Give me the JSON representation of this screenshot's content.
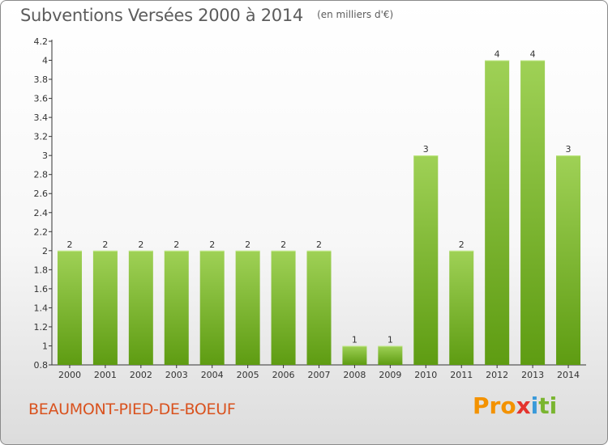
{
  "header": {
    "title": "Subventions Versées 2000 à 2014",
    "subtitle": "(en milliers d'€)"
  },
  "footer": {
    "commune": "BEAUMONT-PIED-DE-BOEUF",
    "logo_text": [
      "Pro",
      "x",
      "i",
      "ti"
    ]
  },
  "colors": {
    "bar_top": "#9fd156",
    "bar_bottom": "#5e9c12",
    "title": "#5c5c5c",
    "commune": "#d9521e"
  },
  "chart_data": {
    "type": "bar",
    "title": "Subventions Versées 2000 à 2014",
    "subtitle": "(en milliers d'€)",
    "categories": [
      "2000",
      "2001",
      "2002",
      "2003",
      "2004",
      "2005",
      "2006",
      "2007",
      "2008",
      "2009",
      "2010",
      "2011",
      "2012",
      "2013",
      "2014"
    ],
    "values": [
      2,
      2,
      2,
      2,
      2,
      2,
      2,
      2,
      1,
      1,
      3,
      2,
      4,
      4,
      3
    ],
    "data_labels": [
      "2",
      "2",
      "2",
      "2",
      "2",
      "2",
      "2",
      "2",
      "1",
      "1",
      "3",
      "2",
      "4",
      "4",
      "3"
    ],
    "yticks": [
      0.8,
      1,
      1.2,
      1.4,
      1.6,
      1.8,
      2,
      2.2,
      2.4,
      2.6,
      2.8,
      3,
      3.2,
      3.4,
      3.6,
      3.8,
      4,
      4.2
    ],
    "ytick_labels": [
      "0.8",
      "1",
      "1.2",
      "1.4",
      "1.6",
      "1.8",
      "2",
      "2.2",
      "2.4",
      "2.6",
      "2.8",
      "3",
      "3.2",
      "3.4",
      "3.6",
      "3.8",
      "4",
      "4.2"
    ],
    "ylim": [
      0.8,
      4.2
    ],
    "xlabel": "",
    "ylabel": "",
    "grid": false,
    "legend": "none"
  }
}
